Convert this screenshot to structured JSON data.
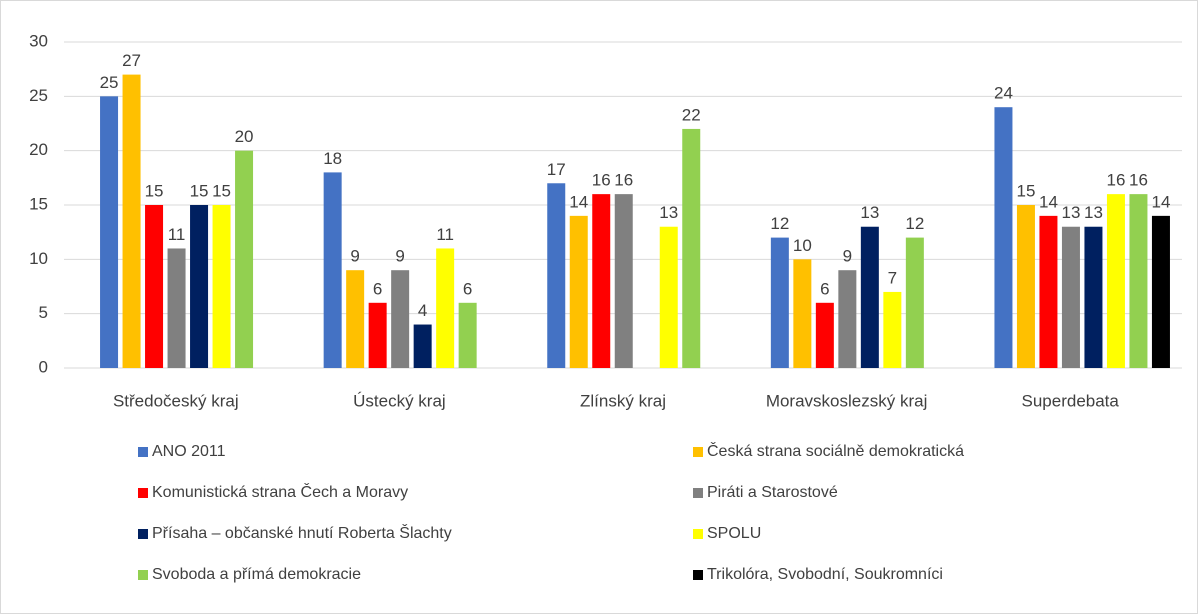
{
  "chart_data": {
    "type": "bar",
    "categories": [
      "Středočeský kraj",
      "Ústecký kraj",
      "Zlínský kraj",
      "Moravskoslezský kraj",
      "Superdebata"
    ],
    "series": [
      {
        "name": "ANO 2011",
        "color": "#4472c4",
        "values": [
          25,
          18,
          17,
          12,
          24
        ]
      },
      {
        "name": "Česká strana sociálně demokratická",
        "color": "#ffc000",
        "values": [
          27,
          9,
          14,
          10,
          15
        ]
      },
      {
        "name": "Komunistická strana Čech a Moravy",
        "color": "#ff0000",
        "values": [
          15,
          6,
          16,
          6,
          14
        ]
      },
      {
        "name": "Piráti a Starostové",
        "color": "#808080",
        "values": [
          11,
          9,
          16,
          9,
          13
        ]
      },
      {
        "name": "Přísaha – občanské hnutí Roberta Šlachty",
        "color": "#002060",
        "values": [
          15,
          4,
          null,
          13,
          13
        ]
      },
      {
        "name": "SPOLU",
        "color": "#ffff00",
        "values": [
          15,
          11,
          13,
          7,
          16
        ]
      },
      {
        "name": "Svoboda a přímá demokracie",
        "color": "#92d050",
        "values": [
          20,
          6,
          22,
          12,
          16
        ]
      },
      {
        "name": "Trikolóra, Svobodní, Soukromníci",
        "color": "#000000",
        "values": [
          null,
          null,
          null,
          null,
          14
        ]
      }
    ],
    "ylim": [
      0,
      30
    ],
    "yticks": [
      0,
      5,
      10,
      15,
      20,
      25,
      30
    ],
    "grid": true,
    "legend": "bottom"
  }
}
